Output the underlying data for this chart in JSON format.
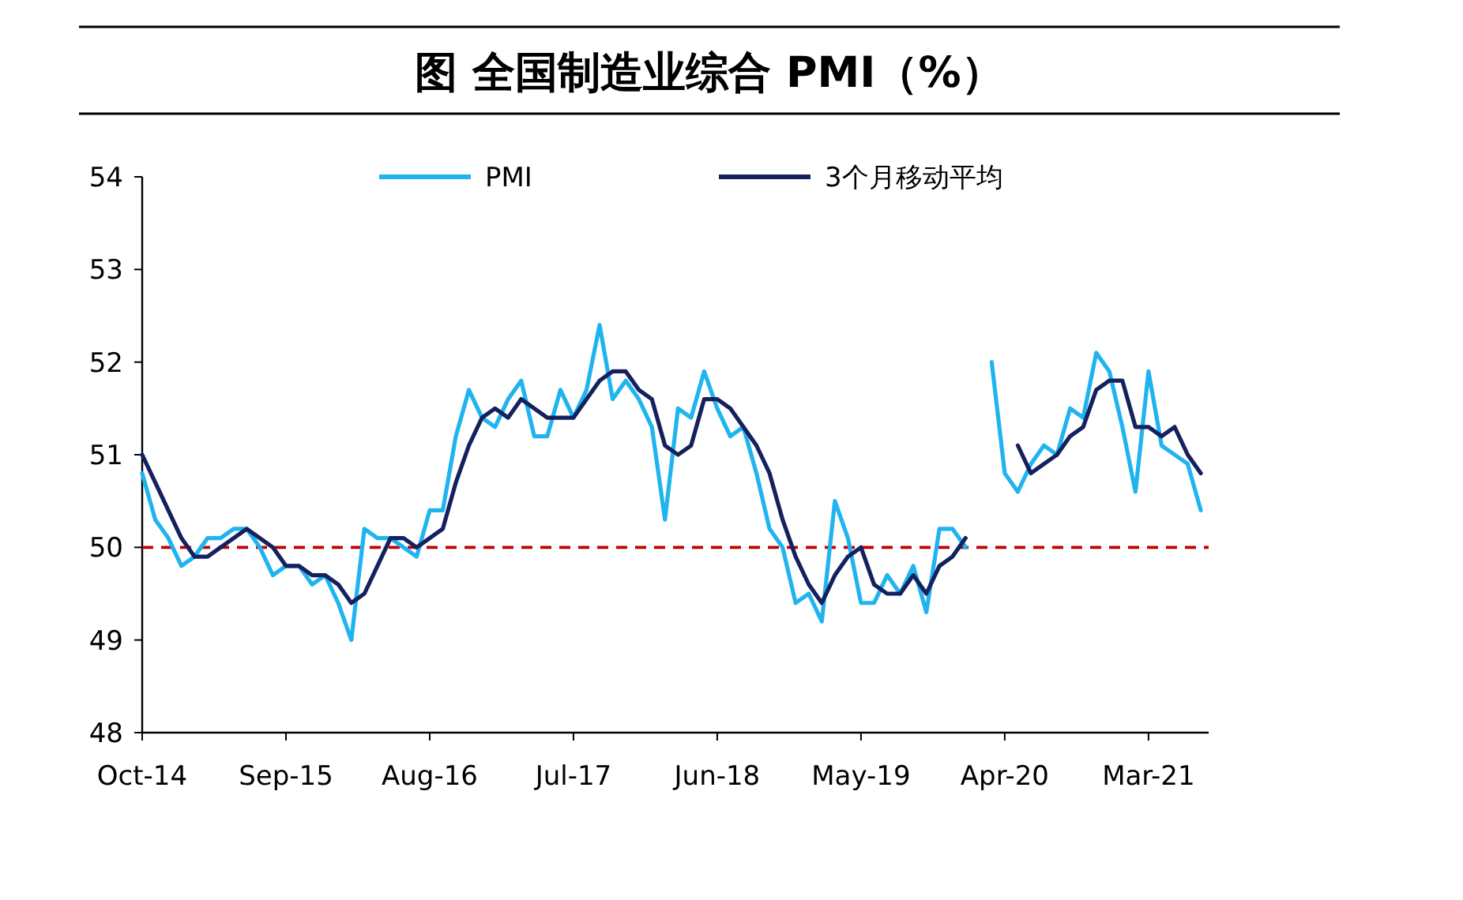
{
  "chart_data": {
    "type": "line",
    "title": "图  全国制造业综合 PMI（%）",
    "categories": [
      "Oct-14",
      null,
      null,
      null,
      null,
      null,
      null,
      null,
      null,
      null,
      null,
      "Sep-15",
      null,
      null,
      null,
      null,
      null,
      null,
      null,
      null,
      null,
      null,
      "Aug-16",
      null,
      null,
      null,
      null,
      null,
      null,
      null,
      null,
      null,
      null,
      "Jul-17",
      null,
      null,
      null,
      null,
      null,
      null,
      null,
      null,
      null,
      null,
      "Jun-18",
      null,
      null,
      null,
      null,
      null,
      null,
      null,
      null,
      null,
      null,
      "May-19",
      null,
      null,
      null,
      null,
      null,
      null,
      null,
      null,
      null,
      null,
      "Apr-20",
      null,
      null,
      null,
      null,
      null,
      null,
      null,
      null,
      null,
      null,
      "Mar-21",
      null,
      null,
      null,
      null
    ],
    "series": [
      {
        "name": "PMI",
        "color": "#1fb4f0",
        "values": [
          50.8,
          50.3,
          50.1,
          49.8,
          49.9,
          50.1,
          50.1,
          50.2,
          50.2,
          50.0,
          49.7,
          49.8,
          49.8,
          49.6,
          49.7,
          49.4,
          49.0,
          50.2,
          50.1,
          50.1,
          50.0,
          49.9,
          50.4,
          50.4,
          51.2,
          51.7,
          51.4,
          51.3,
          51.6,
          51.8,
          51.2,
          51.2,
          51.7,
          51.4,
          51.7,
          52.4,
          51.6,
          51.8,
          51.6,
          51.3,
          50.3,
          51.5,
          51.4,
          51.9,
          51.5,
          51.2,
          51.3,
          50.8,
          50.2,
          50.0,
          49.4,
          49.5,
          49.2,
          50.5,
          50.1,
          49.4,
          49.4,
          49.7,
          49.5,
          49.8,
          49.3,
          50.2,
          50.2,
          50.0,
          null,
          52.0,
          50.8,
          50.6,
          50.9,
          51.1,
          51.0,
          51.5,
          51.4,
          52.1,
          51.9,
          51.3,
          50.6,
          51.9,
          51.1,
          51.0,
          50.9,
          50.4
        ]
      },
      {
        "name": "3个月移动平均",
        "color": "#14215e",
        "values": [
          51.0,
          50.7,
          50.4,
          50.1,
          49.9,
          49.9,
          50.0,
          50.1,
          50.2,
          50.1,
          50.0,
          49.8,
          49.8,
          49.7,
          49.7,
          49.6,
          49.4,
          49.5,
          49.8,
          50.1,
          50.1,
          50.0,
          50.1,
          50.2,
          50.7,
          51.1,
          51.4,
          51.5,
          51.4,
          51.6,
          51.5,
          51.4,
          51.4,
          51.4,
          51.6,
          51.8,
          51.9,
          51.9,
          51.7,
          51.6,
          51.1,
          51.0,
          51.1,
          51.6,
          51.6,
          51.5,
          51.3,
          51.1,
          50.8,
          50.3,
          49.9,
          49.6,
          49.4,
          49.7,
          49.9,
          50.0,
          49.6,
          49.5,
          49.5,
          49.7,
          49.5,
          49.8,
          49.9,
          50.1,
          null,
          null,
          null,
          51.1,
          50.8,
          50.9,
          51.0,
          51.2,
          51.3,
          51.7,
          51.8,
          51.8,
          51.3,
          51.3,
          51.2,
          51.3,
          51.0,
          50.8
        ]
      }
    ],
    "ylim": [
      48,
      54
    ],
    "yticks": [
      48,
      49,
      50,
      51,
      52,
      53,
      54
    ],
    "ref_lines": [
      {
        "axis": "y",
        "value": 50,
        "color": "#c00000",
        "line_style": "dashed"
      }
    ],
    "legend": "top",
    "grid": false,
    "marker": "none",
    "line_style": "solid"
  }
}
